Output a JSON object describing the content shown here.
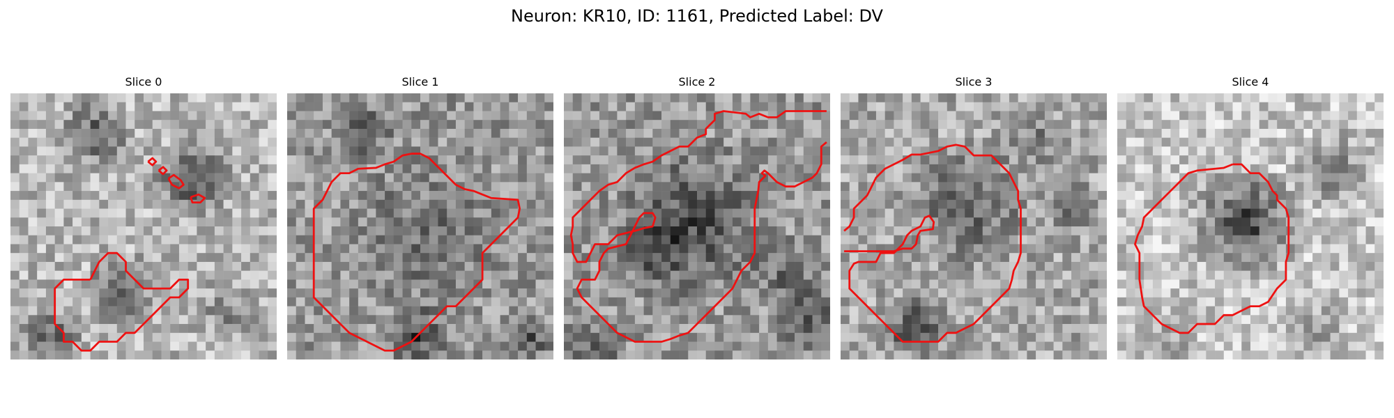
{
  "figure": {
    "title": "Neuron: KR10, ID: 1161, Predicted Label: DV"
  },
  "panels": [
    {
      "title": "Slice 0",
      "image": "grayscale-microscopy-slice-with-red-roi-contour",
      "contour_color": "#ee1111"
    },
    {
      "title": "Slice 1",
      "image": "grayscale-microscopy-slice-with-red-roi-contour",
      "contour_color": "#ee1111"
    },
    {
      "title": "Slice 2",
      "image": "grayscale-microscopy-slice-with-red-roi-contour",
      "contour_color": "#ee1111"
    },
    {
      "title": "Slice 3",
      "image": "grayscale-microscopy-slice-with-red-roi-contour",
      "contour_color": "#ee1111"
    },
    {
      "title": "Slice 4",
      "image": "grayscale-microscopy-slice-with-red-roi-contour",
      "contour_color": "#ee1111"
    }
  ]
}
